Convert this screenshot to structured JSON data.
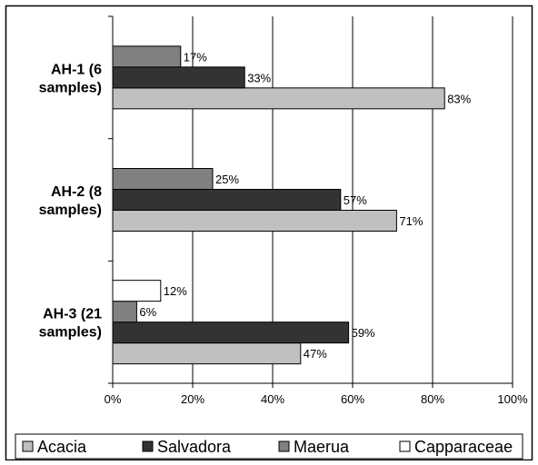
{
  "chart_data": {
    "type": "bar",
    "orientation": "horizontal",
    "title": "",
    "xlabel": "",
    "ylabel": "",
    "xlim": [
      0,
      100
    ],
    "x_ticks": [
      "0%",
      "20%",
      "40%",
      "60%",
      "80%",
      "100%"
    ],
    "grid": "vertical gridlines",
    "legend_position": "bottom",
    "categories": [
      {
        "label_lines": [
          "AH-1 (6",
          "samples)"
        ]
      },
      {
        "label_lines": [
          "AH-2 (8",
          "samples)"
        ]
      },
      {
        "label_lines": [
          "AH-3 (21",
          "samples)"
        ]
      }
    ],
    "series": [
      {
        "name": "Acacia",
        "color": "#c0c0c0",
        "values": [
          83,
          71,
          47
        ],
        "labels": [
          "83%",
          "71%",
          "47%"
        ]
      },
      {
        "name": "Salvadora",
        "color": "#333333",
        "values": [
          33,
          57,
          59
        ],
        "labels": [
          "33%",
          "57%",
          "59%"
        ]
      },
      {
        "name": "Maerua",
        "color": "#808080",
        "values": [
          17,
          25,
          6
        ],
        "labels": [
          "17%",
          "25%",
          "6%"
        ]
      },
      {
        "name": "Capparaceae",
        "color": "#ffffff",
        "values": [
          null,
          null,
          12
        ],
        "labels": [
          "",
          "",
          "12%"
        ]
      }
    ]
  }
}
